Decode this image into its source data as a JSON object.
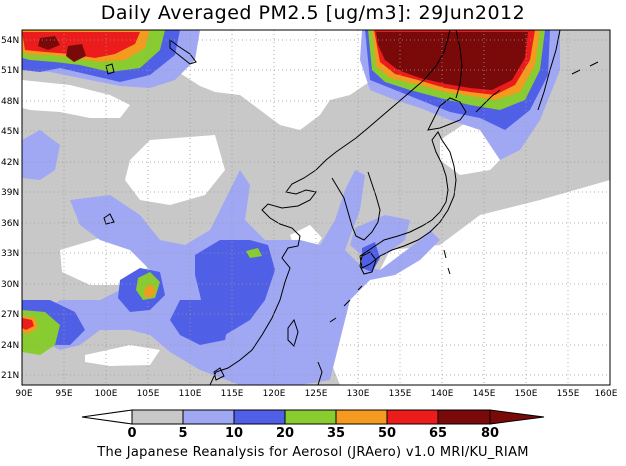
{
  "title": "Daily Averaged PM2.5 [ug/m3]: 29Jun2012",
  "footer": "The Japanese Reanalysis for Aerosol (JRAero) v1.0 MRI/KU_RIAM",
  "map": {
    "lon_range": [
      90,
      160
    ],
    "lat_range": [
      20,
      55
    ],
    "lon_ticks": [
      "90E",
      "95E",
      "100E",
      "105E",
      "110E",
      "115E",
      "120E",
      "125E",
      "130E",
      "135E",
      "140E",
      "145E",
      "150E",
      "155E",
      "160E"
    ],
    "lat_ticks": [
      "54N",
      "51N",
      "48N",
      "45N",
      "42N",
      "39N",
      "36N",
      "33N",
      "30N",
      "27N",
      "24N",
      "21N"
    ],
    "grid": "dotted"
  },
  "colorbar": {
    "levels": [
      "0",
      "5",
      "10",
      "20",
      "35",
      "50",
      "65",
      "80"
    ],
    "colors": [
      "#ffffff",
      "#c8c8c8",
      "#a0a8f4",
      "#5060e6",
      "#88cc30",
      "#f49a1e",
      "#ec1c1c",
      "#7a0a0a"
    ]
  }
}
